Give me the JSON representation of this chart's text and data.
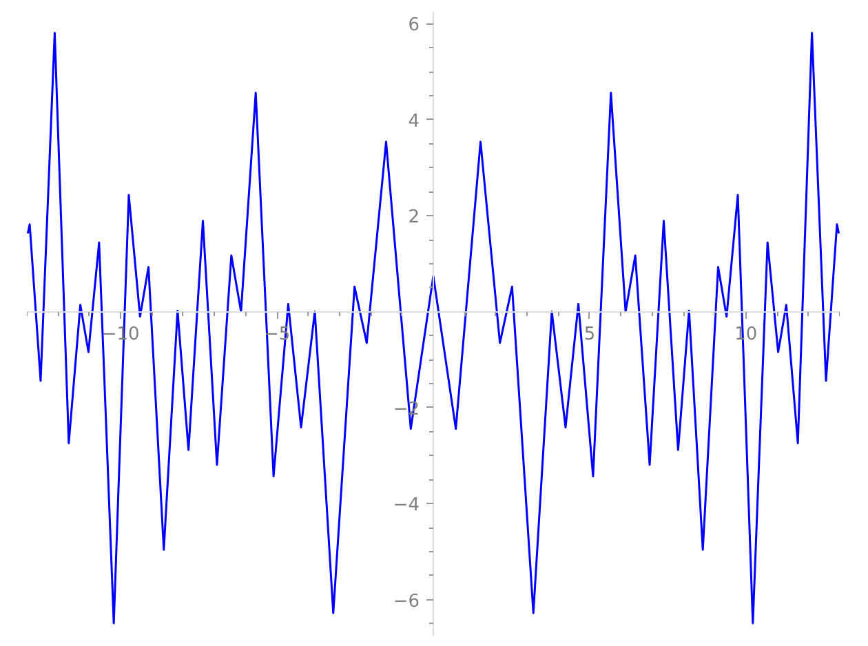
{
  "chart_data": {
    "type": "line",
    "grid": false,
    "marker": "none",
    "line_style": "solid",
    "x": [
      -12.97,
      -12.91,
      -12.56,
      -12.11,
      -11.66,
      -11.29,
      -11.03,
      -10.69,
      -10.22,
      -9.74,
      -9.38,
      -9.11,
      -8.62,
      -8.18,
      -7.83,
      -7.37,
      -6.92,
      -6.46,
      -6.15,
      -5.68,
      -5.11,
      -4.64,
      -4.23,
      -3.79,
      -3.2,
      -2.52,
      -2.13,
      -1.51,
      -0.72,
      0,
      0.72,
      1.51,
      2.13,
      2.52,
      3.2,
      3.79,
      4.23,
      4.64,
      5.11,
      5.68,
      6.15,
      6.46,
      6.92,
      7.37,
      7.83,
      8.18,
      8.62,
      9.11,
      9.38,
      9.74,
      10.22,
      10.69,
      11.03,
      11.29,
      11.66,
      12.11,
      12.56,
      12.91,
      12.97
    ],
    "series": [
      {
        "color": "#0000ff",
        "values": [
          1.63,
          1.82,
          -1.44,
          5.81,
          -2.74,
          0.14,
          -0.84,
          1.44,
          -6.49,
          2.43,
          -0.1,
          0.93,
          -4.96,
          0.02,
          -2.88,
          1.89,
          -3.19,
          1.17,
          0.0,
          4.56,
          -3.43,
          0.16,
          -2.41,
          0.0,
          -6.28,
          0.52,
          -0.65,
          3.54,
          -2.44,
          0.74,
          -2.44,
          3.54,
          -0.65,
          0.52,
          -6.28,
          0.0,
          -2.41,
          0.16,
          -3.43,
          4.56,
          0.0,
          1.17,
          -3.19,
          1.89,
          -2.88,
          0.02,
          -4.96,
          0.93,
          -0.1,
          2.43,
          -6.49,
          1.44,
          -0.84,
          0.14,
          -2.74,
          5.81,
          -1.44,
          1.82,
          1.63
        ]
      }
    ],
    "xlim": [
      -13,
      13
    ],
    "ylim": [
      -6.75,
      6.25
    ],
    "xticks": [
      {
        "value": -13,
        "label": null
      },
      {
        "value": -12,
        "label": null
      },
      {
        "value": -11,
        "label": null
      },
      {
        "value": -10,
        "label": "−10"
      },
      {
        "value": -9,
        "label": null
      },
      {
        "value": -8,
        "label": null
      },
      {
        "value": -7,
        "label": null
      },
      {
        "value": -6,
        "label": null
      },
      {
        "value": -5,
        "label": "−5"
      },
      {
        "value": -4,
        "label": null
      },
      {
        "value": -3,
        "label": null
      },
      {
        "value": -2,
        "label": null
      },
      {
        "value": -1,
        "label": null
      },
      {
        "value": 1,
        "label": null
      },
      {
        "value": 2,
        "label": null
      },
      {
        "value": 3,
        "label": null
      },
      {
        "value": 4,
        "label": null
      },
      {
        "value": 5,
        "label": "5"
      },
      {
        "value": 6,
        "label": null
      },
      {
        "value": 7,
        "label": null
      },
      {
        "value": 8,
        "label": null
      },
      {
        "value": 9,
        "label": null
      },
      {
        "value": 10,
        "label": "10"
      },
      {
        "value": 11,
        "label": null
      },
      {
        "value": 12,
        "label": null
      },
      {
        "value": 13,
        "label": null
      }
    ],
    "yticks": [
      {
        "value": -6.5,
        "label": null
      },
      {
        "value": -6,
        "label": "−6"
      },
      {
        "value": -5.5,
        "label": null
      },
      {
        "value": -5,
        "label": null
      },
      {
        "value": -4.5,
        "label": null
      },
      {
        "value": -4,
        "label": "−4"
      },
      {
        "value": -3.5,
        "label": null
      },
      {
        "value": -3,
        "label": null
      },
      {
        "value": -2.5,
        "label": null
      },
      {
        "value": -2,
        "label": "−2"
      },
      {
        "value": -1.5,
        "label": null
      },
      {
        "value": -1,
        "label": null
      },
      {
        "value": -0.5,
        "label": null
      },
      {
        "value": 0.5,
        "label": null
      },
      {
        "value": 1,
        "label": null
      },
      {
        "value": 1.5,
        "label": null
      },
      {
        "value": 2,
        "label": "2"
      },
      {
        "value": 2.5,
        "label": null
      },
      {
        "value": 3,
        "label": null
      },
      {
        "value": 3.5,
        "label": null
      },
      {
        "value": 4,
        "label": "4"
      },
      {
        "value": 4.5,
        "label": null
      },
      {
        "value": 5,
        "label": null
      },
      {
        "value": 5.5,
        "label": null
      },
      {
        "value": 6,
        "label": "6"
      }
    ]
  }
}
